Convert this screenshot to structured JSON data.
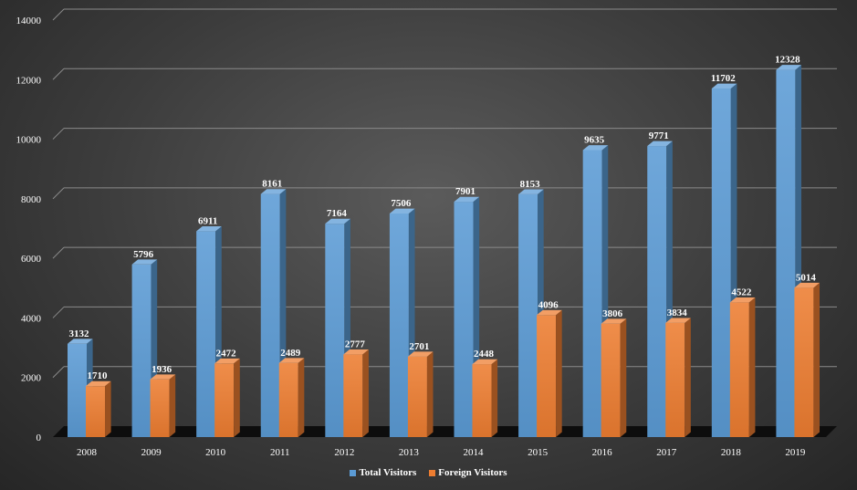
{
  "chart_data": {
    "type": "bar",
    "title": "",
    "xlabel": "",
    "ylabel": "",
    "categories": [
      "2008",
      "2009",
      "2010",
      "2011",
      "2012",
      "2013",
      "2014",
      "2015",
      "2016",
      "2017",
      "2018",
      "2019"
    ],
    "series": [
      {
        "name": "Total Visitors",
        "color": "#5b9bd5",
        "values": [
          3132,
          5796,
          6911,
          8161,
          7164,
          7506,
          7901,
          8153,
          9635,
          9771,
          11702,
          12328
        ]
      },
      {
        "name": "Foreign Visitors",
        "color": "#ed7d31",
        "values": [
          1710,
          1936,
          2472,
          2489,
          2777,
          2701,
          2448,
          4096,
          3806,
          3834,
          4522,
          5014
        ]
      }
    ],
    "ylim": [
      0,
      14000
    ],
    "yticks": [
      0,
      2000,
      4000,
      6000,
      8000,
      10000,
      12000,
      14000
    ],
    "grid": true,
    "legend_position": "bottom",
    "style": "3d-column",
    "data_labels": true
  }
}
